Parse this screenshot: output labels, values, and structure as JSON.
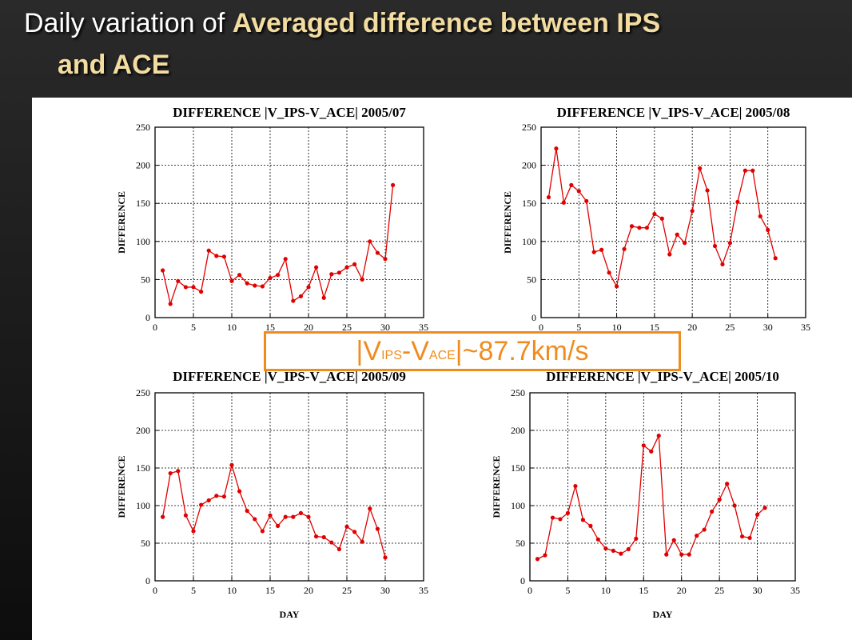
{
  "slide": {
    "title_prefix": "Daily variation of ",
    "title_highlight": "Averaged difference between IPS",
    "title_line2": "and ACE"
  },
  "callout": {
    "bar_left": "|",
    "v1": "V",
    "sub1": "IPS",
    "dash": "-",
    "v2": "V",
    "sub2": "ACE",
    "bar_right": "|",
    "value": "~87.7km/s"
  },
  "chart_data": [
    {
      "type": "line",
      "title": "DIFFERENCE |V_IPS-V_ACE| 2005/07",
      "xlabel": "",
      "ylabel": "DIFFERENCE",
      "xlim": [
        0,
        35
      ],
      "ylim": [
        0,
        250
      ],
      "xticks": [
        0,
        5,
        10,
        15,
        20,
        25,
        30,
        35
      ],
      "yticks": [
        0,
        50,
        100,
        150,
        200,
        250
      ],
      "grid": true,
      "color": "#e00000",
      "x": [
        1,
        2,
        3,
        4,
        5,
        6,
        7,
        8,
        9,
        10,
        11,
        12,
        13,
        14,
        15,
        16,
        17,
        18,
        19,
        20,
        21,
        22,
        23,
        24,
        25,
        26,
        27,
        28,
        29,
        30,
        31
      ],
      "y": [
        62,
        18,
        48,
        40,
        40,
        34,
        88,
        81,
        80,
        48,
        56,
        45,
        42,
        41,
        52,
        56,
        77,
        22,
        28,
        40,
        66,
        26,
        57,
        59,
        66,
        70,
        50,
        100,
        85,
        77,
        174
      ]
    },
    {
      "type": "line",
      "title": "DIFFERENCE |V_IPS-V_ACE| 2005/08",
      "xlabel": "",
      "ylabel": "DIFFERENCE",
      "xlim": [
        0,
        35
      ],
      "ylim": [
        0,
        250
      ],
      "xticks": [
        0,
        5,
        10,
        15,
        20,
        25,
        30,
        35
      ],
      "yticks": [
        0,
        50,
        100,
        150,
        200,
        250
      ],
      "grid": true,
      "color": "#e00000",
      "x": [
        1,
        2,
        3,
        4,
        5,
        6,
        7,
        8,
        9,
        10,
        11,
        12,
        13,
        14,
        15,
        16,
        17,
        18,
        19,
        20,
        21,
        22,
        23,
        24,
        25,
        26,
        27,
        28,
        29,
        30,
        31
      ],
      "y": [
        158,
        222,
        151,
        174,
        166,
        153,
        86,
        89,
        59,
        41,
        90,
        120,
        118,
        118,
        136,
        130,
        83,
        109,
        98,
        140,
        196,
        167,
        94,
        70,
        98,
        152,
        193,
        193,
        133,
        115,
        78
      ]
    },
    {
      "type": "line",
      "title": "DIFFERENCE |V_IPS-V_ACE| 2005/09",
      "xlabel": "DAY",
      "ylabel": "DIFFERENCE",
      "xlim": [
        0,
        35
      ],
      "ylim": [
        0,
        250
      ],
      "xticks": [
        0,
        5,
        10,
        15,
        20,
        25,
        30,
        35
      ],
      "yticks": [
        0,
        50,
        100,
        150,
        200,
        250
      ],
      "grid": true,
      "color": "#e00000",
      "x": [
        1,
        2,
        3,
        4,
        5,
        6,
        7,
        8,
        9,
        10,
        11,
        12,
        13,
        14,
        15,
        16,
        17,
        18,
        19,
        20,
        21,
        22,
        23,
        24,
        25,
        26,
        27,
        28,
        29,
        30
      ],
      "y": [
        85,
        143,
        146,
        87,
        66,
        101,
        107,
        113,
        112,
        154,
        119,
        93,
        82,
        66,
        87,
        73,
        85,
        85,
        90,
        85,
        59,
        58,
        51,
        42,
        72,
        65,
        52,
        96,
        69,
        31
      ]
    },
    {
      "type": "line",
      "title": "DIFFERENCE |V_IPS-V_ACE| 2005/10",
      "xlabel": "DAY",
      "ylabel": "DIFFERENCE",
      "xlim": [
        0,
        35
      ],
      "ylim": [
        0,
        250
      ],
      "xticks": [
        0,
        5,
        10,
        15,
        20,
        25,
        30,
        35
      ],
      "yticks": [
        0,
        50,
        100,
        150,
        200,
        250
      ],
      "grid": true,
      "color": "#e00000",
      "x": [
        1,
        2,
        3,
        4,
        5,
        6,
        7,
        8,
        9,
        10,
        11,
        12,
        13,
        14,
        15,
        16,
        17,
        18,
        19,
        20,
        21,
        22,
        23,
        24,
        25,
        26,
        27,
        28,
        29,
        30,
        31
      ],
      "y": [
        29,
        34,
        84,
        82,
        90,
        126,
        81,
        73,
        55,
        43,
        40,
        36,
        42,
        56,
        180,
        172,
        193,
        35,
        54,
        35,
        35,
        60,
        68,
        92,
        108,
        129,
        100,
        59,
        57,
        88,
        97
      ]
    }
  ]
}
